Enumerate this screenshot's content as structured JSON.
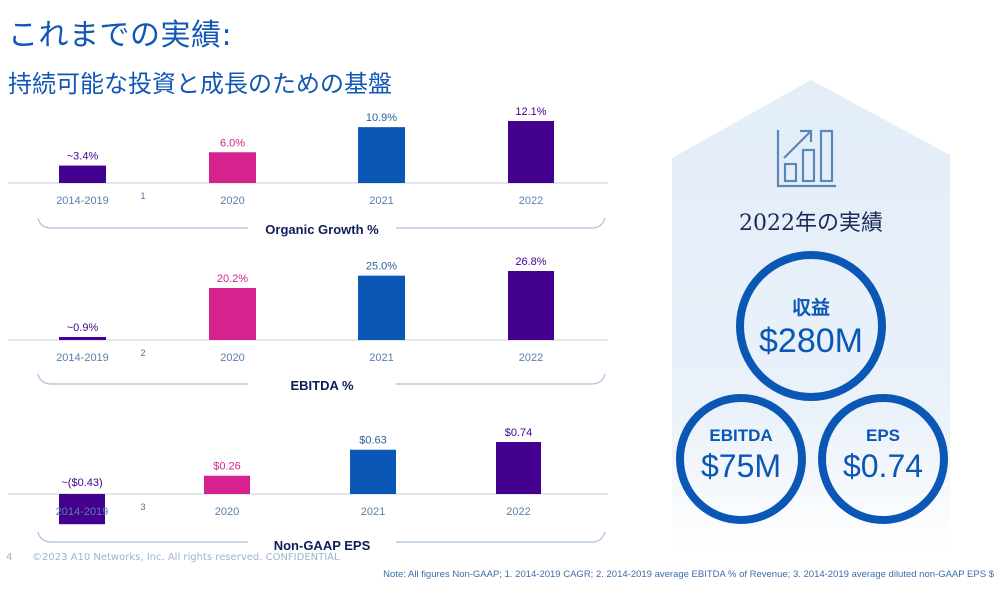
{
  "header": {
    "title": "これまでの実績:",
    "subtitle": "持続可能な投資と成長のための基盤"
  },
  "colors": {
    "purple": "#44008f",
    "magenta": "#d6228f",
    "blue": "#0a57b5",
    "axis_label": "#5a7fa8",
    "title_navy": "#0e1c5a",
    "panel_bg": "#e3edf8"
  },
  "chart_data": [
    {
      "type": "bar",
      "title": "Organic Growth %",
      "categories": [
        "2014-2019",
        "2020",
        "2021",
        "2022"
      ],
      "values": [
        3.4,
        6.0,
        10.9,
        12.1
      ],
      "labels": [
        "~3.4%",
        "6.0%",
        "10.9%",
        "12.1%"
      ],
      "footnote_marker": "1",
      "ylim": [
        0,
        14
      ],
      "grid": false
    },
    {
      "type": "bar",
      "title": "EBITDA %",
      "categories": [
        "2014-2019",
        "2020",
        "2021",
        "2022"
      ],
      "values": [
        0.9,
        20.2,
        25.0,
        26.8
      ],
      "labels": [
        "~0.9%",
        "20.2%",
        "25.0%",
        "26.8%"
      ],
      "footnote_marker": "2",
      "ylim": [
        0,
        30
      ],
      "grid": false
    },
    {
      "type": "bar",
      "title": "Non-GAAP EPS",
      "categories": [
        "2014-2019",
        "2020",
        "2021",
        "2022"
      ],
      "values": [
        -0.43,
        0.26,
        0.63,
        0.74
      ],
      "labels": [
        "~($0.43)",
        "$0.26",
        "$0.63",
        "$0.74"
      ],
      "footnote_marker": "3",
      "ylim": [
        -0.5,
        0.85
      ],
      "grid": false
    }
  ],
  "summary": {
    "title": "2022年の実績",
    "icon": "bar-chart-growth-icon",
    "revenue": {
      "label": "収益",
      "value": "$280M"
    },
    "ebitda": {
      "label": "EBITDA",
      "value": "$75M"
    },
    "eps": {
      "label": "EPS",
      "value": "$0.74"
    }
  },
  "footer": {
    "page_number": "4",
    "copyright": "©2023 A10 Networks, Inc. All rights reserved. CONFIDENTIAL",
    "note": "Note: All figures Non-GAAP;  1. 2014-2019 CAGR;  2. 2014-2019 average EBITDA  % of Revenue;  3. 2014-2019 average diluted non-GAAP EPS $"
  }
}
